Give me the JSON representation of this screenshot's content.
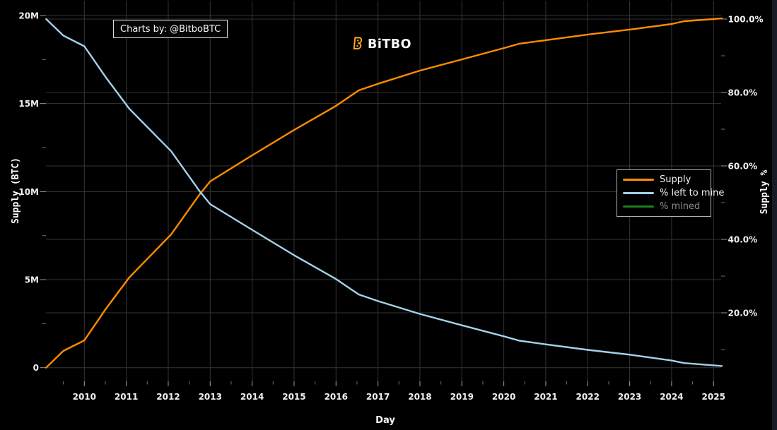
{
  "branding": {
    "watermark": "Charts by: @BitboBTC",
    "logo_text": "BiTBO"
  },
  "colors": {
    "background": "#000000",
    "grid": "#343434",
    "tick_major": "#999999",
    "tick_minor": "#6e6e6e",
    "tick_label": "#f0f0f0",
    "muted_text": "#8c8c8c",
    "legend_border": "#b3b3b3",
    "watermark_border": "#dcdcdc",
    "logo_orange": "#f7a21b",
    "edge_strip": "#161b24"
  },
  "chart_data": {
    "type": "line",
    "title": "",
    "xlabel": "Day",
    "grid": true,
    "legend_position": "right",
    "x_unit": "year",
    "x_range": [
      2009.09,
      2025.2
    ],
    "x_minor_step": 0.5,
    "x_ticks": [
      {
        "v": 2010,
        "label": "2010"
      },
      {
        "v": 2011,
        "label": "2011"
      },
      {
        "v": 2012,
        "label": "2012"
      },
      {
        "v": 2013,
        "label": "2013"
      },
      {
        "v": 2014,
        "label": "2014"
      },
      {
        "v": 2015,
        "label": "2015"
      },
      {
        "v": 2016,
        "label": "2016"
      },
      {
        "v": 2017,
        "label": "2017"
      },
      {
        "v": 2018,
        "label": "2018"
      },
      {
        "v": 2019,
        "label": "2019"
      },
      {
        "v": 2020,
        "label": "2020"
      },
      {
        "v": 2021,
        "label": "2021"
      },
      {
        "v": 2022,
        "label": "2022"
      },
      {
        "v": 2023,
        "label": "2023"
      },
      {
        "v": 2024,
        "label": "2024"
      },
      {
        "v": 2025,
        "label": "2025"
      }
    ],
    "left_axis": {
      "title": "Supply (BTC)",
      "unit": "million BTC",
      "range": [
        0,
        20
      ],
      "ticks": [
        {
          "v": 0,
          "label": "0"
        },
        {
          "v": 5,
          "label": "5M"
        },
        {
          "v": 10,
          "label": "10M"
        },
        {
          "v": 15,
          "label": "15M"
        },
        {
          "v": 20,
          "label": "20M"
        }
      ],
      "minor_ticks": [
        2.5,
        7.5,
        12.5,
        17.5
      ]
    },
    "right_axis": {
      "title": "Supply %",
      "unit": "percent",
      "range": [
        0,
        100
      ],
      "ticks": [
        {
          "v": 20,
          "label": "20.0%"
        },
        {
          "v": 40,
          "label": "40.0%"
        },
        {
          "v": 60,
          "label": "60.0%"
        },
        {
          "v": 80,
          "label": "80.0%"
        },
        {
          "v": 100,
          "label": "100.0%"
        }
      ],
      "minor_ticks": [
        10,
        30,
        50,
        70,
        90
      ]
    },
    "x": [
      2009.09,
      2009.5,
      2010.0,
      2010.5,
      2011.07,
      2012.07,
      2012.75,
      2013.0,
      2014.0,
      2015.0,
      2016.0,
      2016.54,
      2017.0,
      2018.0,
      2019.0,
      2020.0,
      2020.37,
      2021.0,
      2022.0,
      2023.0,
      2024.0,
      2024.3,
      2025.0,
      2025.2
    ],
    "series": [
      {
        "key": "supply",
        "name": "Supply",
        "color": "#ff8c00",
        "axis": "left",
        "unit": "million BTC",
        "hidden": false,
        "label_color": "#f2f2f2",
        "values": [
          0,
          0.95,
          1.55,
          3.3,
          5.12,
          7.57,
          9.85,
          10.58,
          12.06,
          13.5,
          14.87,
          15.75,
          16.12,
          16.87,
          17.51,
          18.15,
          18.4,
          18.6,
          18.92,
          19.2,
          19.52,
          19.68,
          19.8,
          19.84
        ]
      },
      {
        "key": "pct_left_to_mine",
        "name": "% left to mine",
        "color": "#a3d1e8",
        "axis": "right",
        "unit": "percent",
        "hidden": false,
        "label_color": "#f2f2f2",
        "values": [
          100,
          95.5,
          92.6,
          84.3,
          75.6,
          64.0,
          53.1,
          49.6,
          42.6,
          35.7,
          29.2,
          25.0,
          23.2,
          19.7,
          16.6,
          13.6,
          12.4,
          11.4,
          9.9,
          8.6,
          7.0,
          6.3,
          5.7,
          5.5
        ]
      },
      {
        "key": "pct_mined",
        "name": "% mined",
        "color": "#1e7e1e",
        "axis": "right",
        "unit": "percent",
        "hidden": true,
        "label_color": "#8c8c8c",
        "values": []
      }
    ]
  }
}
